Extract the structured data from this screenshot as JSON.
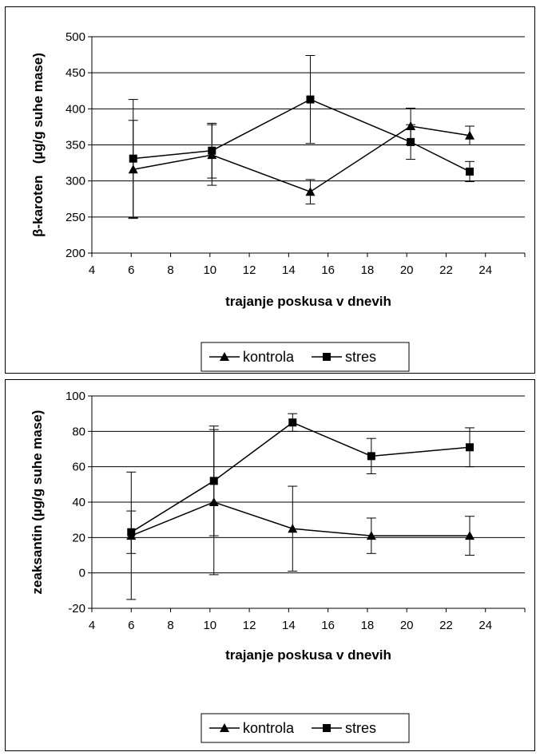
{
  "chart_data": [
    {
      "type": "line",
      "xlabel": "trajanje poskusa v dnevih",
      "ylabel": "β-karoten   (µg/g suhe mase)",
      "xlim": [
        4,
        26
      ],
      "ylim": [
        200,
        500
      ],
      "xticks": [
        "4",
        "6",
        "8",
        "10",
        "12",
        "14",
        "16",
        "18",
        "20",
        "22",
        "24"
      ],
      "yticks": [
        "200",
        "250",
        "300",
        "350",
        "400",
        "450",
        "500"
      ],
      "grid": "horizontal",
      "legend_position": "bottom",
      "series": [
        {
          "name": "kontrola",
          "marker": "triangle",
          "x": [
            6.1,
            10.1,
            15.1,
            20.2,
            23.2
          ],
          "y": [
            316,
            336,
            285,
            376,
            363
          ],
          "error": [
            68,
            42,
            17,
            25,
            13
          ]
        },
        {
          "name": "stres",
          "marker": "square",
          "x": [
            6.1,
            10.1,
            15.1,
            20.2,
            23.2
          ],
          "y": [
            331,
            342,
            413,
            354,
            313
          ],
          "error": [
            82,
            38,
            61,
            24,
            14
          ]
        }
      ]
    },
    {
      "type": "line",
      "xlabel": "trajanje poskusa v dnevih",
      "ylabel": "zeaksantin (µg/g suhe mase)",
      "xlim": [
        4,
        26
      ],
      "ylim": [
        -20,
        100
      ],
      "xticks": [
        "4",
        "6",
        "8",
        "10",
        "12",
        "14",
        "16",
        "18",
        "20",
        "22",
        "24"
      ],
      "yticks": [
        "-20",
        "0",
        "20",
        "40",
        "60",
        "80",
        "100"
      ],
      "grid": "horizontal",
      "legend_position": "bottom",
      "series": [
        {
          "name": "kontrola",
          "marker": "triangle",
          "x": [
            6,
            10.2,
            14.2,
            18.2,
            23.2
          ],
          "y": [
            21,
            40,
            25,
            21,
            21
          ],
          "error": [
            36,
            41,
            24,
            10,
            11
          ]
        },
        {
          "name": "stres",
          "marker": "square",
          "x": [
            6,
            10.2,
            14.2,
            18.2,
            23.2
          ],
          "y": [
            23,
            52,
            85,
            66,
            71
          ],
          "error": [
            12,
            31,
            5,
            10,
            11
          ]
        }
      ]
    }
  ]
}
